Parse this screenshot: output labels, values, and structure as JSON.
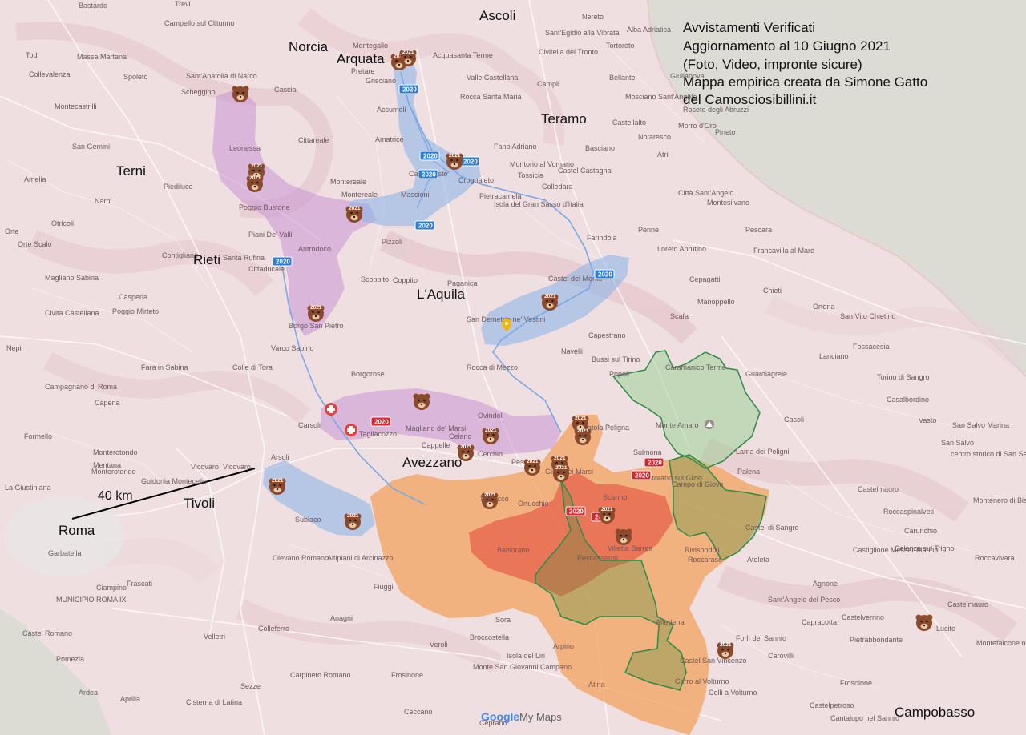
{
  "info": {
    "lines": [
      "Avvistamenti Verificati",
      "Aggiornamento al 10 Giugno 2021",
      "(Foto, Video, impronte sicure)",
      "Mappa empirica creata da Simone Gatto",
      "del Camosciosibillini.it"
    ]
  },
  "cities": [
    {
      "id": "ascoli",
      "label": "Ascoli"
    },
    {
      "id": "norcia",
      "label": "Norcia"
    },
    {
      "id": "arquata",
      "label": "Arquata"
    },
    {
      "id": "teramo",
      "label": "Teramo"
    },
    {
      "id": "terni",
      "label": "Terni"
    },
    {
      "id": "rieti",
      "label": "Rieti"
    },
    {
      "id": "laquila",
      "label": "L'Aquila"
    },
    {
      "id": "avezzano",
      "label": "Avezzano"
    },
    {
      "id": "tivoli",
      "label": "Tivoli"
    },
    {
      "id": "roma",
      "label": "Roma"
    },
    {
      "id": "campobasso",
      "label": "Campobasso"
    }
  ],
  "places": [
    {
      "id": "p1",
      "label": "Bastardo"
    },
    {
      "id": "p2",
      "label": "Trevi"
    },
    {
      "id": "p3",
      "label": "Campello sul Clitunno"
    },
    {
      "id": "p4",
      "label": "Todi"
    },
    {
      "id": "p5",
      "label": "Massa Martana"
    },
    {
      "id": "p6",
      "label": "Collevalenza"
    },
    {
      "id": "p7",
      "label": "Spoleto"
    },
    {
      "id": "p8",
      "label": "Sant'Anatolia di Narco"
    },
    {
      "id": "p9",
      "label": "Scheggino"
    },
    {
      "id": "p10",
      "label": "Cascia"
    },
    {
      "id": "p11",
      "label": "Montecastrilli"
    },
    {
      "id": "p12",
      "label": "San Gemini"
    },
    {
      "id": "p13",
      "label": "Amelia"
    },
    {
      "id": "p14",
      "label": "Narni"
    },
    {
      "id": "p15",
      "label": "Piediluco"
    },
    {
      "id": "p16",
      "label": "Otricoli"
    },
    {
      "id": "p17",
      "label": "Orte"
    },
    {
      "id": "p18",
      "label": "Orte Scalo"
    },
    {
      "id": "p19",
      "label": "Magliano Sabina"
    },
    {
      "id": "p20",
      "label": "Casperia"
    },
    {
      "id": "p21",
      "label": "Civita Castellana"
    },
    {
      "id": "p22",
      "label": "Poggio Mirteto"
    },
    {
      "id": "p23",
      "label": "Fara in Sabina"
    },
    {
      "id": "p24",
      "label": "Nepi"
    },
    {
      "id": "p25",
      "label": "Campagnano di Roma"
    },
    {
      "id": "p26",
      "label": "Capena"
    },
    {
      "id": "p27",
      "label": "Formello"
    },
    {
      "id": "p28",
      "label": "Monterotondo"
    },
    {
      "id": "p29",
      "label": "Mentana"
    },
    {
      "id": "p30",
      "label": "Guidonia Montecelio"
    },
    {
      "id": "p31",
      "label": "La Giustiniana"
    },
    {
      "id": "p32",
      "label": "Garbatella"
    },
    {
      "id": "p33",
      "label": "MUNICIPIO ROMA IX"
    },
    {
      "id": "p34",
      "label": "Ciampino"
    },
    {
      "id": "p35",
      "label": "Frascati"
    },
    {
      "id": "p36",
      "label": "Castel Romano"
    },
    {
      "id": "p37",
      "label": "Ardea"
    },
    {
      "id": "p38",
      "label": "Pomezia"
    },
    {
      "id": "p39",
      "label": "Aprilia"
    },
    {
      "id": "p40",
      "label": "Cisterna di Latina"
    },
    {
      "id": "p41",
      "label": "Velletri"
    },
    {
      "id": "p42",
      "label": "Colleferro"
    },
    {
      "id": "p43",
      "label": "Anagni"
    },
    {
      "id": "p44",
      "label": "Fiuggi"
    },
    {
      "id": "p45",
      "label": "Subiaco"
    },
    {
      "id": "p46",
      "label": "Olevano Romano"
    },
    {
      "id": "p47",
      "label": "Altipiani di Arcinazzo"
    },
    {
      "id": "p48",
      "label": "Arsoli"
    },
    {
      "id": "p49",
      "label": "Vicovaro"
    },
    {
      "id": "p50",
      "label": "Tagliacozzo"
    },
    {
      "id": "p51",
      "label": "Carsoli"
    },
    {
      "id": "p52",
      "label": "Magliano de' Marsi"
    },
    {
      "id": "p53",
      "label": "Ovindoli"
    },
    {
      "id": "p54",
      "label": "Celano"
    },
    {
      "id": "p55",
      "label": "Cappelle"
    },
    {
      "id": "p56",
      "label": "Ortucchio"
    },
    {
      "id": "p57",
      "label": "Trasacco"
    },
    {
      "id": "p58",
      "label": "Balsorano"
    },
    {
      "id": "p59",
      "label": "Sora"
    },
    {
      "id": "p60",
      "label": "Broccostella"
    },
    {
      "id": "p61",
      "label": "Veroli"
    },
    {
      "id": "p62",
      "label": "Frosinone"
    },
    {
      "id": "p63",
      "label": "Monte San Giovanni Campano"
    },
    {
      "id": "p64",
      "label": "Isola del Liri"
    },
    {
      "id": "p65",
      "label": "Arpino"
    },
    {
      "id": "p66",
      "label": "Atina"
    },
    {
      "id": "p67",
      "label": "Ceccano"
    },
    {
      "id": "p68",
      "label": "Carpineto Romano"
    },
    {
      "id": "p69",
      "label": "Sezze"
    },
    {
      "id": "p70",
      "label": "Ceprano"
    },
    {
      "id": "p71",
      "label": "Leonessa"
    },
    {
      "id": "p72",
      "label": "Poggio Bustone"
    },
    {
      "id": "p73",
      "label": "Cittareale"
    },
    {
      "id": "p74",
      "label": "Amatrice"
    },
    {
      "id": "p75",
      "label": "Accumoli"
    },
    {
      "id": "p76",
      "label": "Montereale"
    },
    {
      "id": "p77",
      "label": "Mascioni"
    },
    {
      "id": "p78",
      "label": "Pizzoli"
    },
    {
      "id": "p79",
      "label": "Piani De' Valli"
    },
    {
      "id": "p80",
      "label": "Antrodoco"
    },
    {
      "id": "p81",
      "label": "Santa Rufina"
    },
    {
      "id": "p82",
      "label": "Cittaducale"
    },
    {
      "id": "p83",
      "label": "Contigliano"
    },
    {
      "id": "p84",
      "label": "Scoppito"
    },
    {
      "id": "p85",
      "label": "Coppito"
    },
    {
      "id": "p86",
      "label": "Borgo San Pietro"
    },
    {
      "id": "p87",
      "label": "Varco Sabino"
    },
    {
      "id": "p88",
      "label": "Colle di Tora"
    },
    {
      "id": "p89",
      "label": "Borgorose"
    },
    {
      "id": "p90",
      "label": "Rocca di Mezzo"
    },
    {
      "id": "p91",
      "label": "Paganica"
    },
    {
      "id": "p92",
      "label": "Castel del Monte"
    },
    {
      "id": "p93",
      "label": "San Demetrio ne' Vestini"
    },
    {
      "id": "p94",
      "label": "Capestrano"
    },
    {
      "id": "p95",
      "label": "Navelli"
    },
    {
      "id": "p96",
      "label": "Bussi sul Tirino"
    },
    {
      "id": "p97",
      "label": "Popoli"
    },
    {
      "id": "p98",
      "label": "Pratola Peligna"
    },
    {
      "id": "p99",
      "label": "Sulmona"
    },
    {
      "id": "p100",
      "label": "Caramanico Terme"
    },
    {
      "id": "p101",
      "label": "Guardiagrele"
    },
    {
      "id": "p102",
      "label": "Casoli"
    },
    {
      "id": "p103",
      "label": "Palena"
    },
    {
      "id": "p104",
      "label": "Lama dei Peligni"
    },
    {
      "id": "p105",
      "label": "Castel di Sangro"
    },
    {
      "id": "p106",
      "label": "Rivisondoli"
    },
    {
      "id": "p107",
      "label": "Roccaraso"
    },
    {
      "id": "p108",
      "label": "Alfedena"
    },
    {
      "id": "p109",
      "label": "Forlì del Sannio"
    },
    {
      "id": "p110",
      "label": "Castel San Vincenzo"
    },
    {
      "id": "p111",
      "label": "Colli a Volturno"
    },
    {
      "id": "p112",
      "label": "Agnone"
    },
    {
      "id": "p113",
      "label": "Capracotta"
    },
    {
      "id": "p114",
      "label": "Castelverrino"
    },
    {
      "id": "p115",
      "label": "Carovilli"
    },
    {
      "id": "p116",
      "label": "Pietrabbondante"
    },
    {
      "id": "p117",
      "label": "Frosolone"
    },
    {
      "id": "p118",
      "label": "Castelpetroso"
    },
    {
      "id": "p119",
      "label": "Cantalupo nel Sannio"
    },
    {
      "id": "p120",
      "label": "Lucito"
    },
    {
      "id": "p121",
      "label": "Castelmauro"
    },
    {
      "id": "p122",
      "label": "Montefalcone nel Sannio"
    },
    {
      "id": "p123",
      "label": "Roccavivara"
    },
    {
      "id": "p124",
      "label": "Castiglione Messer Marino"
    },
    {
      "id": "p125",
      "label": "Roccaspinalveti"
    },
    {
      "id": "p126",
      "label": "Carunchio"
    },
    {
      "id": "p127",
      "label": "Celenza sul Trigno"
    },
    {
      "id": "p128",
      "label": "Castelmauro"
    },
    {
      "id": "p129",
      "label": "Montenero di Bisaccia"
    },
    {
      "id": "p130",
      "label": "San Salvo Marina"
    },
    {
      "id": "p131",
      "label": "San Salvo"
    },
    {
      "id": "p132",
      "label": "Vasto"
    },
    {
      "id": "p133",
      "label": "centro storico di San Salvo"
    },
    {
      "id": "p134",
      "label": "Lanciano"
    },
    {
      "id": "p135",
      "label": "Fossacesia"
    },
    {
      "id": "p136",
      "label": "Torino di Sangro"
    },
    {
      "id": "p137",
      "label": "Casalbordino"
    },
    {
      "id": "p138",
      "label": "San Vito Chietino"
    },
    {
      "id": "p139",
      "label": "Ortona"
    },
    {
      "id": "p140",
      "label": "Chieti"
    },
    {
      "id": "p141",
      "label": "Pescara"
    },
    {
      "id": "p142",
      "label": "Montesilvano"
    },
    {
      "id": "p143",
      "label": "Francavilla al Mare"
    },
    {
      "id": "p144",
      "label": "Cepagatti"
    },
    {
      "id": "p145",
      "label": "Manoppello"
    },
    {
      "id": "p146",
      "label": "Scafa"
    },
    {
      "id": "p147",
      "label": "Loreto Aprutino"
    },
    {
      "id": "p148",
      "label": "Penne"
    },
    {
      "id": "p149",
      "label": "Farindola"
    },
    {
      "id": "p150",
      "label": "Città Sant'Angelo"
    },
    {
      "id": "p151",
      "label": "Atri"
    },
    {
      "id": "p152",
      "label": "Pineto"
    },
    {
      "id": "p153",
      "label": "Roseto degli Abruzzi"
    },
    {
      "id": "p154",
      "label": "Giulianova"
    },
    {
      "id": "p155",
      "label": "Alba Adriatica"
    },
    {
      "id": "p156",
      "label": "Sant'Egidio alla Vibrata"
    },
    {
      "id": "p157",
      "label": "Civitella del Tronto"
    },
    {
      "id": "p158",
      "label": "Campli"
    },
    {
      "id": "p159",
      "label": "Bellante"
    },
    {
      "id": "p160",
      "label": "Mosciano Sant'Angelo"
    },
    {
      "id": "p161",
      "label": "Castellalto"
    },
    {
      "id": "p162",
      "label": "Notaresco"
    },
    {
      "id": "p163",
      "label": "Montorio al Vomano"
    },
    {
      "id": "p164",
      "label": "Castel Castagna"
    },
    {
      "id": "p165",
      "label": "Isola del Gran Sasso d'Italia"
    },
    {
      "id": "p166",
      "label": "Pietracamela"
    },
    {
      "id": "p167",
      "label": "Crognaleto"
    },
    {
      "id": "p168",
      "label": "Rocca Santa Maria"
    },
    {
      "id": "p169",
      "label": "Valle Castellana"
    },
    {
      "id": "p170",
      "label": "Acquasanta Terme"
    },
    {
      "id": "p171",
      "label": "Montegallo"
    },
    {
      "id": "p172",
      "label": "Pretare"
    },
    {
      "id": "p173",
      "label": "Grisciano"
    },
    {
      "id": "p174",
      "label": "Fano Adriano"
    },
    {
      "id": "p175",
      "label": "Colledara"
    },
    {
      "id": "p176",
      "label": "Tossicia"
    },
    {
      "id": "p177",
      "label": "Nereto"
    },
    {
      "id": "p178",
      "label": "Campotosto"
    },
    {
      "id": "p179",
      "label": "Tortoreto"
    },
    {
      "id": "p180",
      "label": "Basciano"
    },
    {
      "id": "p181",
      "label": "Morro d'Oro"
    },
    {
      "id": "p182",
      "label": "Cerchio"
    },
    {
      "id": "p183",
      "label": "Pescina"
    },
    {
      "id": "p184",
      "label": "Gioia dei Marsi"
    },
    {
      "id": "p185",
      "label": "Villetta Barrea"
    },
    {
      "id": "p186",
      "label": "Pescasseroli"
    },
    {
      "id": "p187",
      "label": "Scanno"
    },
    {
      "id": "p188",
      "label": "Pettorano sul Gizio"
    },
    {
      "id": "p189",
      "label": "Campo di Giove"
    },
    {
      "id": "p190",
      "label": "Ateleta"
    },
    {
      "id": "p191",
      "label": "Sant'Angelo del Pesco"
    },
    {
      "id": "p192",
      "label": "Cerro al Volturno"
    },
    {
      "id": "p193",
      "label": "Vicovaro"
    },
    {
      "id": "p194",
      "label": "Monterotondo"
    },
    {
      "id": "p195",
      "label": "Montereale"
    }
  ],
  "sea_labels": [],
  "peak": {
    "label": "Monte Amaro"
  },
  "year_badges": [
    {
      "id": "b1",
      "text": "2020",
      "color": "#2b7bd9"
    },
    {
      "id": "b2",
      "text": "2020",
      "color": "#2b7bd9"
    },
    {
      "id": "b3",
      "text": "2020",
      "color": "#2b7bd9"
    },
    {
      "id": "b4",
      "text": "2020",
      "color": "#2b7bd9"
    },
    {
      "id": "b5",
      "text": "2020",
      "color": "#2b7bd9"
    },
    {
      "id": "b6",
      "text": "2020",
      "color": "#2b7bd9"
    },
    {
      "id": "b7",
      "text": "2020",
      "color": "#2b7bd9"
    },
    {
      "id": "b8",
      "text": "2020",
      "color": "#d9262d"
    },
    {
      "id": "b9",
      "text": "2020",
      "color": "#d9262d"
    },
    {
      "id": "b10",
      "text": "2020",
      "color": "#d9262d"
    },
    {
      "id": "b11",
      "text": "2020",
      "color": "#d9262d"
    },
    {
      "id": "b12",
      "text": "2020",
      "color": "#d9262d"
    }
  ],
  "bears": [
    {
      "id": "u1",
      "year": ""
    },
    {
      "id": "u2",
      "year": "2021"
    },
    {
      "id": "u3",
      "year": "2021"
    },
    {
      "id": "u4",
      "year": "2021"
    },
    {
      "id": "u5",
      "year": "2021"
    },
    {
      "id": "u6",
      "year": "2021"
    },
    {
      "id": "u7",
      "year": "2021"
    },
    {
      "id": "u8",
      "year": "2021"
    },
    {
      "id": "u9",
      "year": "2021"
    },
    {
      "id": "u10",
      "year": "2021"
    },
    {
      "id": "u11",
      "year": "2021"
    },
    {
      "id": "u12",
      "year": ""
    },
    {
      "id": "u13",
      "year": "2021"
    },
    {
      "id": "u14",
      "year": "2021"
    },
    {
      "id": "u15",
      "year": "2021"
    },
    {
      "id": "u16",
      "year": "2021"
    },
    {
      "id": "u17",
      "year": "2021"
    },
    {
      "id": "u18",
      "year": "2021"
    },
    {
      "id": "u19",
      "year": "2021"
    },
    {
      "id": "u20",
      "year": "2021"
    },
    {
      "id": "u21",
      "year": "2021"
    },
    {
      "id": "u22",
      "year": ""
    },
    {
      "id": "u23",
      "year": "2021"
    },
    {
      "id": "u24",
      "year": ""
    }
  ],
  "scale": {
    "label": "40 km"
  },
  "attribution": {
    "google": "Google",
    "product": "My Maps"
  },
  "colors": {
    "land": "#efdfe1",
    "sea": "#dcdcd4",
    "blue_zone": "#8fb6e8",
    "purple_zone": "#c996d6",
    "orange_zone": "#f2a35e",
    "red_zone": "#e3463b",
    "green_outline": "#2e8b48",
    "route_line": "#7aa9e6",
    "bear": "#8b4a2b"
  }
}
